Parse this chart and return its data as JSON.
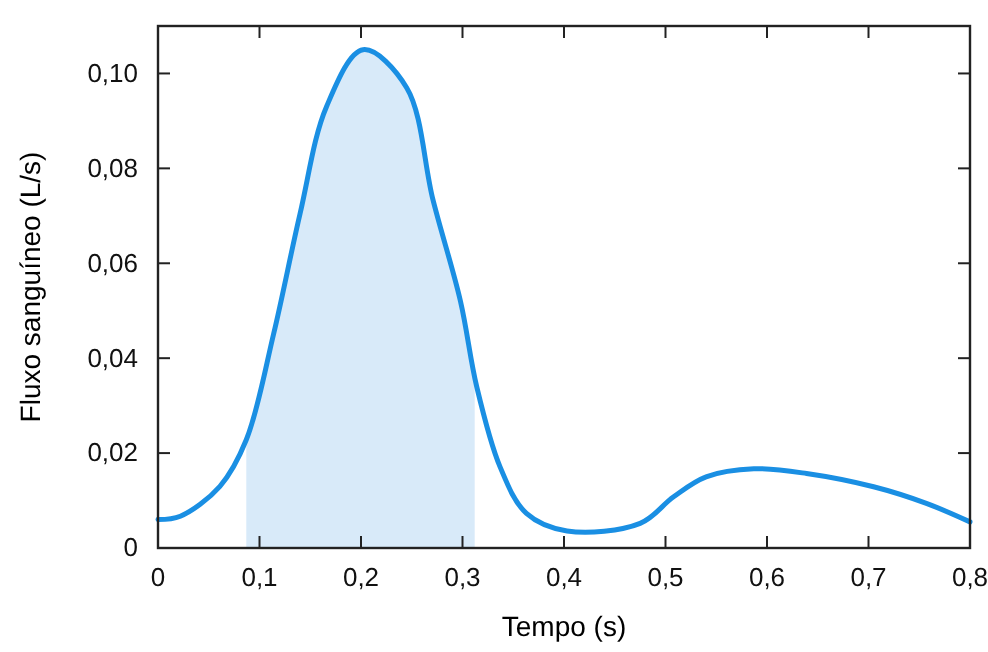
{
  "chart_data": {
    "type": "line",
    "xlabel": "Tempo (s)",
    "ylabel": "Fluxo sanguíneo (L/s)",
    "xlim": [
      0,
      0.8
    ],
    "ylim": [
      0,
      0.11
    ],
    "xticks": [
      0,
      {
        "value": 0.1,
        "label": "0,1"
      },
      {
        "value": 0.2,
        "label": "0,2"
      },
      {
        "value": 0.3,
        "label": "0,3"
      },
      {
        "value": 0.4,
        "label": "0,4"
      },
      {
        "value": 0.5,
        "label": "0,5"
      },
      {
        "value": 0.6,
        "label": "0,6"
      },
      {
        "value": 0.7,
        "label": "0,7"
      },
      {
        "value": 0.8,
        "label": "0,8"
      }
    ],
    "yticks": [
      0,
      {
        "value": 0.02,
        "label": "0,02"
      },
      {
        "value": 0.04,
        "label": "0,04"
      },
      {
        "value": 0.06,
        "label": "0,06"
      },
      {
        "value": 0.08,
        "label": "0,08"
      },
      {
        "value": 0.1,
        "label": "0,10"
      }
    ],
    "series": [
      {
        "type": "area",
        "color": "#d8eaf9",
        "x": [
          0.087,
          0.114,
          0.14,
          0.166,
          0.202,
          0.245,
          0.271,
          0.298,
          0.312
        ],
        "values": [
          0.0228,
          0.0452,
          0.0705,
          0.093,
          0.105,
          0.097,
          0.0733,
          0.052,
          0.038
        ]
      },
      {
        "color": "#1a8fe3",
        "x": [
          0,
          0.022,
          0.061,
          0.087,
          0.114,
          0.14,
          0.166,
          0.202,
          0.245,
          0.271,
          0.298,
          0.314,
          0.337,
          0.363,
          0.403,
          0.475,
          0.508,
          0.54,
          0.587,
          0.639,
          0.705,
          0.757,
          0.8
        ],
        "values": [
          0.006,
          0.0067,
          0.013,
          0.0228,
          0.0452,
          0.0705,
          0.093,
          0.105,
          0.097,
          0.0733,
          0.052,
          0.034,
          0.0171,
          0.0073,
          0.0036,
          0.0052,
          0.0108,
          0.015,
          0.0167,
          0.0157,
          0.0129,
          0.0094,
          0.0055
        ]
      }
    ],
    "grid": false,
    "marker": "none",
    "line_style": "solid"
  }
}
